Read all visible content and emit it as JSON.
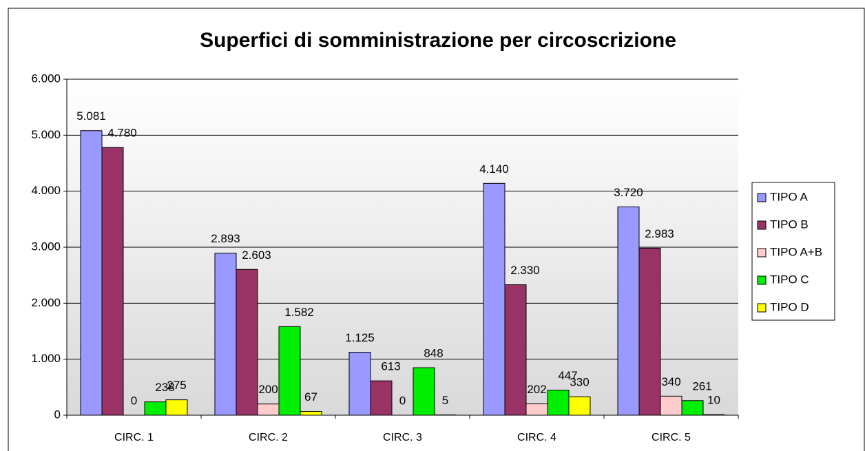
{
  "chart_data": {
    "type": "bar",
    "title": "Superfici di somministrazione per circoscrizione",
    "categories": [
      "CIRC. 1",
      "CIRC. 2",
      "CIRC. 3",
      "CIRC. 4",
      "CIRC. 5"
    ],
    "series": [
      {
        "name": "TIPO A",
        "color": "#9999ff",
        "values": [
          5081,
          2893,
          1125,
          4140,
          3720
        ],
        "value_labels": [
          "5.081",
          "2.893",
          "1.125",
          "4.140",
          "3.720"
        ]
      },
      {
        "name": "TIPO B",
        "color": "#993366",
        "values": [
          4780,
          2603,
          613,
          2330,
          2983
        ],
        "value_labels": [
          "4.780",
          "2.603",
          "613",
          "2.330",
          "2.983"
        ]
      },
      {
        "name": "TIPO A+B",
        "color": "#ffcccc",
        "values": [
          0,
          200,
          0,
          202,
          340
        ]
      },
      {
        "name": "TIPO C",
        "color": "#00ee00",
        "values": [
          238,
          1582,
          848,
          447,
          261
        ],
        "value_labels": [
          "238",
          "1.582",
          "848",
          "447",
          "261"
        ]
      },
      {
        "name": "TIPO D",
        "color": "#ffff00",
        "values": [
          275,
          67,
          5,
          330,
          10
        ]
      }
    ],
    "ylim": [
      0,
      6000
    ],
    "yticks": [
      0,
      {
        "value": 1000,
        "label": "1.000"
      },
      {
        "value": 2000,
        "label": "2.000"
      },
      {
        "value": 3000,
        "label": "3.000"
      },
      {
        "value": 4000,
        "label": "4.000"
      },
      {
        "value": 5000,
        "label": "5.000"
      },
      {
        "value": 6000,
        "label": "6.000"
      }
    ],
    "grid": true,
    "legend": "right"
  }
}
